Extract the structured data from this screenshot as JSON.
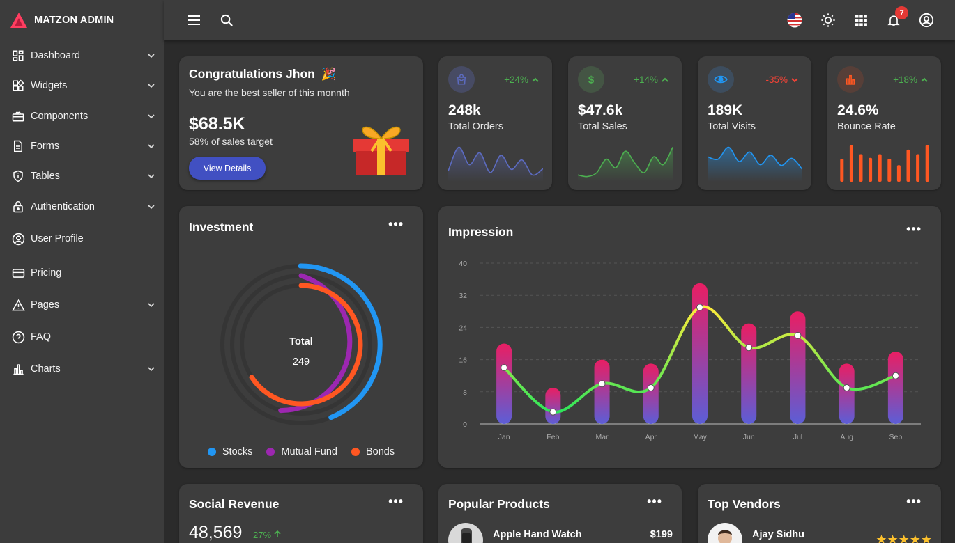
{
  "brand": {
    "name": "MATZON ADMIN",
    "accent": "#ff3d60"
  },
  "sidebar": {
    "items": [
      {
        "label": "Dashboard",
        "icon": "dashboard-icon",
        "expandable": true
      },
      {
        "label": "Widgets",
        "icon": "widgets-icon",
        "expandable": true
      },
      {
        "label": "Components",
        "icon": "components-icon",
        "expandable": true
      },
      {
        "label": "Forms",
        "icon": "forms-icon",
        "expandable": true
      },
      {
        "label": "Tables",
        "icon": "tables-icon",
        "expandable": true
      },
      {
        "label": "Authentication",
        "icon": "lock-icon",
        "expandable": true
      },
      {
        "label": "User Profile",
        "icon": "user-profile-icon",
        "expandable": false
      },
      {
        "label": "Pricing",
        "icon": "credit-card-icon",
        "expandable": false
      },
      {
        "label": "Pages",
        "icon": "warning-icon",
        "expandable": true
      },
      {
        "label": "FAQ",
        "icon": "help-icon",
        "expandable": false
      },
      {
        "label": "Charts",
        "icon": "bar-chart-icon",
        "expandable": true
      }
    ]
  },
  "topbar": {
    "notification_count": "7",
    "icons": [
      "menu-icon",
      "search-icon",
      "us-flag-icon",
      "sun-icon",
      "apps-grid-icon",
      "bell-icon",
      "account-circle-icon"
    ]
  },
  "congrats": {
    "title": "Congratulations Jhon",
    "emoji": "🎉",
    "subtitle": "You are the best seller of this monnth",
    "amount": "$68.5K",
    "target": "58% of sales target",
    "button": "View Details"
  },
  "stats": [
    {
      "value": "248k",
      "label": "Total Orders",
      "change": "+24%",
      "trend": "up",
      "icon": "shopping-bag-icon",
      "color": "#5c6bc0",
      "icon_bg": "#474b64",
      "spark": "line",
      "spark_values": [
        10,
        40,
        18,
        33,
        8,
        30,
        12,
        24,
        5,
        13
      ]
    },
    {
      "value": "$47.6k",
      "label": "Total Sales",
      "change": "+14%",
      "trend": "up",
      "icon": "dollar-icon",
      "color": "#4caf50",
      "icon_bg": "#445544",
      "spark": "line",
      "spark_values": [
        5,
        3,
        8,
        25,
        14,
        35,
        20,
        8,
        28,
        18,
        40
      ]
    },
    {
      "value": "189K",
      "label": "Total Visits",
      "change": "-35%",
      "trend": "down",
      "icon": "eye-icon",
      "color": "#2196f3",
      "icon_bg": "#3d4d5e",
      "spark": "line",
      "spark_values": [
        28,
        25,
        40,
        22,
        34,
        18,
        30,
        17,
        26,
        12
      ]
    },
    {
      "value": "24.6%",
      "label": "Bounce Rate",
      "change": "+18%",
      "trend": "up",
      "icon": "bar-chart-icon",
      "color": "#ff5722",
      "icon_bg": "#573f38",
      "spark": "bar",
      "spark_values": [
        25,
        40,
        30,
        26,
        30,
        25,
        18,
        35,
        30,
        40
      ]
    }
  ],
  "investment": {
    "title": "Investment",
    "center_label": "Total",
    "center_value": "249",
    "legend": [
      {
        "name": "Stocks",
        "color": "#2196f3"
      },
      {
        "name": "Mutual Fund",
        "color": "#9c27b0"
      },
      {
        "name": "Bonds",
        "color": "#ff5722"
      }
    ]
  },
  "chart_data": {
    "type": "bar",
    "title": "Impression",
    "categories": [
      "Jan",
      "Feb",
      "Mar",
      "Apr",
      "May",
      "Jun",
      "Jul",
      "Aug",
      "Sep"
    ],
    "series": [
      {
        "type": "bar",
        "values": [
          20,
          9,
          16,
          15,
          35,
          25,
          28,
          15,
          18
        ]
      },
      {
        "type": "line",
        "values": [
          14,
          3,
          10,
          9,
          29,
          19,
          22,
          9,
          12
        ]
      }
    ],
    "yticks": [
      0,
      8,
      16,
      24,
      32,
      40
    ],
    "ylim": [
      0,
      40
    ],
    "grid": true
  },
  "social_revenue": {
    "title": "Social Revenue",
    "value": "48,569",
    "change": "27%"
  },
  "popular_products": {
    "title": "Popular Products",
    "first": {
      "name": "Apple Hand Watch",
      "price": "$199"
    }
  },
  "top_vendors": {
    "title": "Top Vendors",
    "first": {
      "name": "Ajay Sidhu",
      "rating": 5
    }
  }
}
